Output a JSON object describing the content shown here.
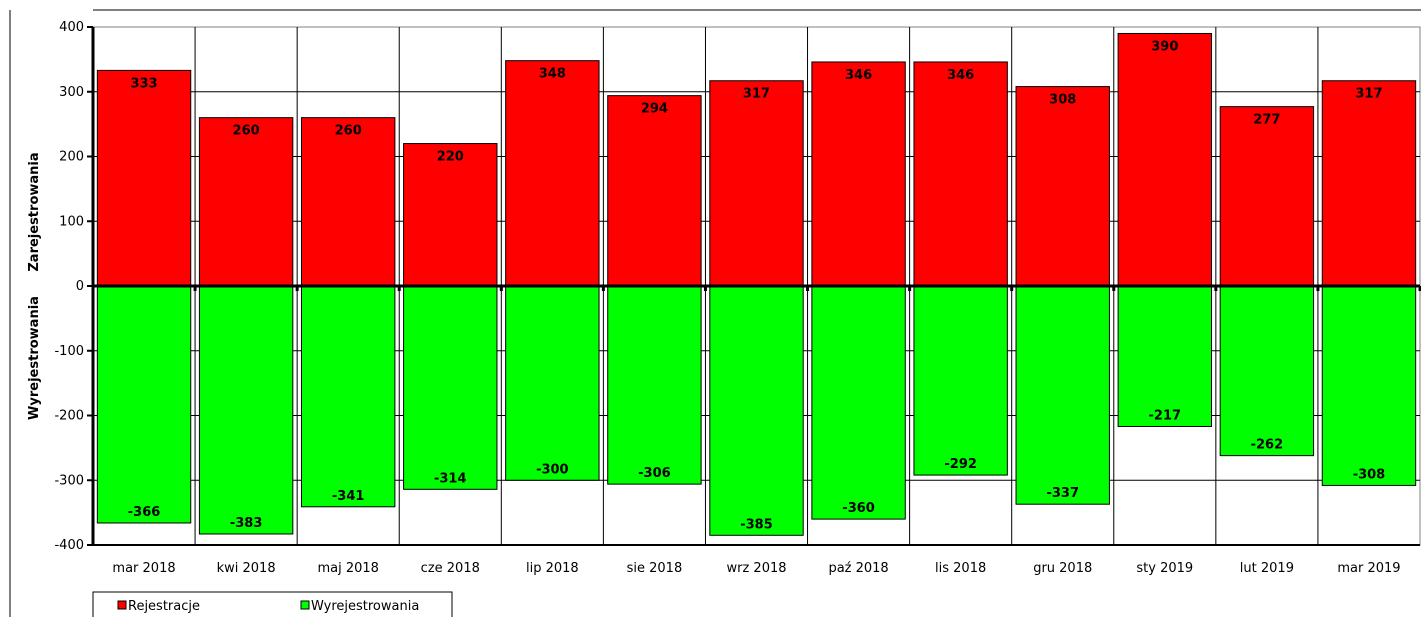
{
  "chart_data": {
    "type": "bar",
    "categories": [
      "mar 2018",
      "kwi 2018",
      "maj 2018",
      "cze 2018",
      "lip 2018",
      "sie 2018",
      "wrz 2018",
      "paź 2018",
      "lis 2018",
      "gru 2018",
      "sty 2019",
      "lut 2019",
      "mar 2019"
    ],
    "series": [
      {
        "name": "Rejestracje",
        "color": "#ff0000",
        "values": [
          333,
          260,
          260,
          220,
          348,
          294,
          317,
          346,
          346,
          308,
          390,
          277,
          317
        ]
      },
      {
        "name": "Wyrejestrowania",
        "color": "#00ff00",
        "values": [
          -366,
          -383,
          -341,
          -314,
          -300,
          -306,
          -385,
          -360,
          -292,
          -337,
          -217,
          -262,
          -308
        ]
      }
    ],
    "ylim": [
      -400,
      400
    ],
    "yticks": [
      400,
      300,
      200,
      100,
      0,
      -100,
      -200,
      -300,
      -400
    ],
    "ylabel_upper": "Zarejestrowania",
    "ylabel_lower": "Wyrejestrowania",
    "grid": true,
    "stacked": true,
    "legend_position": "bottom-left"
  }
}
